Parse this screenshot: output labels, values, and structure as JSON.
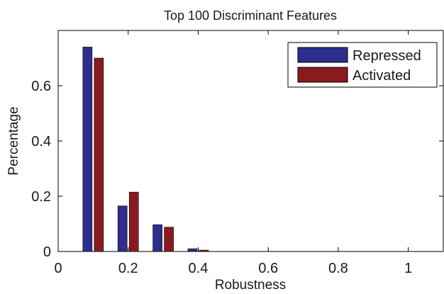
{
  "chart_data": {
    "type": "bar",
    "title": "Top 100 Discriminant Features",
    "xlabel": "Robustness",
    "ylabel": "Percentage",
    "xlim": [
      0,
      1.1
    ],
    "ylim": [
      0,
      0.8
    ],
    "xticks": [
      "0",
      "0.2",
      "0.4",
      "0.6",
      "0.8",
      "1"
    ],
    "yticks": [
      "0",
      "0.2",
      "0.4",
      "0.6"
    ],
    "categories": [
      0.1,
      0.2,
      0.3,
      0.4
    ],
    "series": [
      {
        "name": "Repressed",
        "color": "#2e2e8f",
        "values": [
          0.74,
          0.165,
          0.097,
          0.01
        ]
      },
      {
        "name": "Activated",
        "color": "#8b1a1f",
        "values": [
          0.7,
          0.215,
          0.088,
          0.005
        ]
      }
    ],
    "legend_position": "top-right",
    "grid": false
  }
}
